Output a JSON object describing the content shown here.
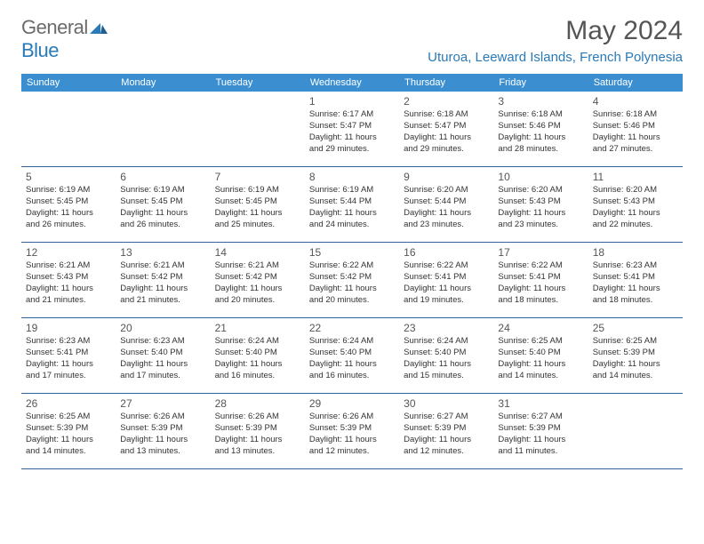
{
  "logo": {
    "general": "General",
    "blue": "Blue"
  },
  "title": "May 2024",
  "location": "Uturoa, Leeward Islands, French Polynesia",
  "colors": {
    "header_bg": "#3b8fd0",
    "border": "#34639b",
    "accent": "#2a7ab8",
    "text": "#333333",
    "muted": "#555555",
    "bg": "#ffffff"
  },
  "typography": {
    "title_fontsize": 30,
    "location_fontsize": 15,
    "dow_fontsize": 11,
    "daynum_fontsize": 12,
    "body_fontsize": 9.5
  },
  "daysOfWeek": [
    "Sunday",
    "Monday",
    "Tuesday",
    "Wednesday",
    "Thursday",
    "Friday",
    "Saturday"
  ],
  "weeks": [
    [
      null,
      null,
      null,
      {
        "n": "1",
        "sr": "Sunrise: 6:17 AM",
        "ss": "Sunset: 5:47 PM",
        "d1": "Daylight: 11 hours",
        "d2": "and 29 minutes."
      },
      {
        "n": "2",
        "sr": "Sunrise: 6:18 AM",
        "ss": "Sunset: 5:47 PM",
        "d1": "Daylight: 11 hours",
        "d2": "and 29 minutes."
      },
      {
        "n": "3",
        "sr": "Sunrise: 6:18 AM",
        "ss": "Sunset: 5:46 PM",
        "d1": "Daylight: 11 hours",
        "d2": "and 28 minutes."
      },
      {
        "n": "4",
        "sr": "Sunrise: 6:18 AM",
        "ss": "Sunset: 5:46 PM",
        "d1": "Daylight: 11 hours",
        "d2": "and 27 minutes."
      }
    ],
    [
      {
        "n": "5",
        "sr": "Sunrise: 6:19 AM",
        "ss": "Sunset: 5:45 PM",
        "d1": "Daylight: 11 hours",
        "d2": "and 26 minutes."
      },
      {
        "n": "6",
        "sr": "Sunrise: 6:19 AM",
        "ss": "Sunset: 5:45 PM",
        "d1": "Daylight: 11 hours",
        "d2": "and 26 minutes."
      },
      {
        "n": "7",
        "sr": "Sunrise: 6:19 AM",
        "ss": "Sunset: 5:45 PM",
        "d1": "Daylight: 11 hours",
        "d2": "and 25 minutes."
      },
      {
        "n": "8",
        "sr": "Sunrise: 6:19 AM",
        "ss": "Sunset: 5:44 PM",
        "d1": "Daylight: 11 hours",
        "d2": "and 24 minutes."
      },
      {
        "n": "9",
        "sr": "Sunrise: 6:20 AM",
        "ss": "Sunset: 5:44 PM",
        "d1": "Daylight: 11 hours",
        "d2": "and 23 minutes."
      },
      {
        "n": "10",
        "sr": "Sunrise: 6:20 AM",
        "ss": "Sunset: 5:43 PM",
        "d1": "Daylight: 11 hours",
        "d2": "and 23 minutes."
      },
      {
        "n": "11",
        "sr": "Sunrise: 6:20 AM",
        "ss": "Sunset: 5:43 PM",
        "d1": "Daylight: 11 hours",
        "d2": "and 22 minutes."
      }
    ],
    [
      {
        "n": "12",
        "sr": "Sunrise: 6:21 AM",
        "ss": "Sunset: 5:43 PM",
        "d1": "Daylight: 11 hours",
        "d2": "and 21 minutes."
      },
      {
        "n": "13",
        "sr": "Sunrise: 6:21 AM",
        "ss": "Sunset: 5:42 PM",
        "d1": "Daylight: 11 hours",
        "d2": "and 21 minutes."
      },
      {
        "n": "14",
        "sr": "Sunrise: 6:21 AM",
        "ss": "Sunset: 5:42 PM",
        "d1": "Daylight: 11 hours",
        "d2": "and 20 minutes."
      },
      {
        "n": "15",
        "sr": "Sunrise: 6:22 AM",
        "ss": "Sunset: 5:42 PM",
        "d1": "Daylight: 11 hours",
        "d2": "and 20 minutes."
      },
      {
        "n": "16",
        "sr": "Sunrise: 6:22 AM",
        "ss": "Sunset: 5:41 PM",
        "d1": "Daylight: 11 hours",
        "d2": "and 19 minutes."
      },
      {
        "n": "17",
        "sr": "Sunrise: 6:22 AM",
        "ss": "Sunset: 5:41 PM",
        "d1": "Daylight: 11 hours",
        "d2": "and 18 minutes."
      },
      {
        "n": "18",
        "sr": "Sunrise: 6:23 AM",
        "ss": "Sunset: 5:41 PM",
        "d1": "Daylight: 11 hours",
        "d2": "and 18 minutes."
      }
    ],
    [
      {
        "n": "19",
        "sr": "Sunrise: 6:23 AM",
        "ss": "Sunset: 5:41 PM",
        "d1": "Daylight: 11 hours",
        "d2": "and 17 minutes."
      },
      {
        "n": "20",
        "sr": "Sunrise: 6:23 AM",
        "ss": "Sunset: 5:40 PM",
        "d1": "Daylight: 11 hours",
        "d2": "and 17 minutes."
      },
      {
        "n": "21",
        "sr": "Sunrise: 6:24 AM",
        "ss": "Sunset: 5:40 PM",
        "d1": "Daylight: 11 hours",
        "d2": "and 16 minutes."
      },
      {
        "n": "22",
        "sr": "Sunrise: 6:24 AM",
        "ss": "Sunset: 5:40 PM",
        "d1": "Daylight: 11 hours",
        "d2": "and 16 minutes."
      },
      {
        "n": "23",
        "sr": "Sunrise: 6:24 AM",
        "ss": "Sunset: 5:40 PM",
        "d1": "Daylight: 11 hours",
        "d2": "and 15 minutes."
      },
      {
        "n": "24",
        "sr": "Sunrise: 6:25 AM",
        "ss": "Sunset: 5:40 PM",
        "d1": "Daylight: 11 hours",
        "d2": "and 14 minutes."
      },
      {
        "n": "25",
        "sr": "Sunrise: 6:25 AM",
        "ss": "Sunset: 5:39 PM",
        "d1": "Daylight: 11 hours",
        "d2": "and 14 minutes."
      }
    ],
    [
      {
        "n": "26",
        "sr": "Sunrise: 6:25 AM",
        "ss": "Sunset: 5:39 PM",
        "d1": "Daylight: 11 hours",
        "d2": "and 14 minutes."
      },
      {
        "n": "27",
        "sr": "Sunrise: 6:26 AM",
        "ss": "Sunset: 5:39 PM",
        "d1": "Daylight: 11 hours",
        "d2": "and 13 minutes."
      },
      {
        "n": "28",
        "sr": "Sunrise: 6:26 AM",
        "ss": "Sunset: 5:39 PM",
        "d1": "Daylight: 11 hours",
        "d2": "and 13 minutes."
      },
      {
        "n": "29",
        "sr": "Sunrise: 6:26 AM",
        "ss": "Sunset: 5:39 PM",
        "d1": "Daylight: 11 hours",
        "d2": "and 12 minutes."
      },
      {
        "n": "30",
        "sr": "Sunrise: 6:27 AM",
        "ss": "Sunset: 5:39 PM",
        "d1": "Daylight: 11 hours",
        "d2": "and 12 minutes."
      },
      {
        "n": "31",
        "sr": "Sunrise: 6:27 AM",
        "ss": "Sunset: 5:39 PM",
        "d1": "Daylight: 11 hours",
        "d2": "and 11 minutes."
      },
      null
    ]
  ]
}
